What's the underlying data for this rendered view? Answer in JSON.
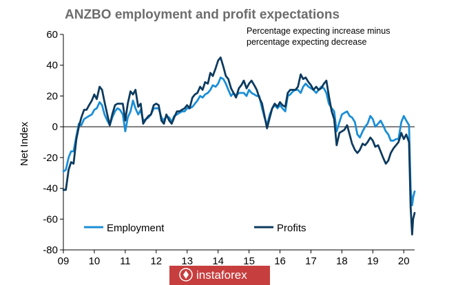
{
  "chart_data": {
    "type": "line",
    "title": "ANZBO employment and profit expectations",
    "subtitle_lines": [
      "Percentage expecting increase minus",
      "percentage expecting decrease"
    ],
    "ylabel": "Net Index",
    "ylim": [
      -80,
      60
    ],
    "yticks": [
      60,
      40,
      20,
      0,
      -20,
      -40,
      -60,
      -80
    ],
    "xlim": [
      2009,
      2020.35
    ],
    "xtick_labels": [
      "09",
      "10",
      "11",
      "12",
      "13",
      "14",
      "15",
      "16",
      "17",
      "18",
      "19",
      "20"
    ],
    "grid": false,
    "legend_position": "bottom-center",
    "zero_line": true,
    "series": [
      {
        "name": "Employment",
        "color": "#1b8ed6",
        "points": [
          [
            2009.0,
            -29
          ],
          [
            2009.08,
            -28
          ],
          [
            2009.17,
            -20
          ],
          [
            2009.25,
            -16
          ],
          [
            2009.33,
            -16
          ],
          [
            2009.42,
            -6
          ],
          [
            2009.5,
            2
          ],
          [
            2009.58,
            1
          ],
          [
            2009.67,
            5
          ],
          [
            2009.75,
            6
          ],
          [
            2009.83,
            7
          ],
          [
            2009.92,
            8
          ],
          [
            2010.0,
            11
          ],
          [
            2010.08,
            12
          ],
          [
            2010.17,
            16
          ],
          [
            2010.25,
            14
          ],
          [
            2010.33,
            8
          ],
          [
            2010.42,
            4
          ],
          [
            2010.5,
            1
          ],
          [
            2010.58,
            6
          ],
          [
            2010.67,
            10
          ],
          [
            2010.75,
            12
          ],
          [
            2010.83,
            11
          ],
          [
            2010.92,
            8
          ],
          [
            2011.0,
            -3
          ],
          [
            2011.08,
            6
          ],
          [
            2011.17,
            10
          ],
          [
            2011.25,
            17
          ],
          [
            2011.33,
            12
          ],
          [
            2011.42,
            8
          ],
          [
            2011.5,
            11
          ],
          [
            2011.58,
            4
          ],
          [
            2011.67,
            5
          ],
          [
            2011.75,
            6
          ],
          [
            2011.83,
            8
          ],
          [
            2011.92,
            12
          ],
          [
            2012.0,
            12
          ],
          [
            2012.08,
            12
          ],
          [
            2012.17,
            6
          ],
          [
            2012.25,
            4
          ],
          [
            2012.33,
            7
          ],
          [
            2012.42,
            6
          ],
          [
            2012.5,
            3
          ],
          [
            2012.58,
            7
          ],
          [
            2012.67,
            8
          ],
          [
            2012.75,
            9
          ],
          [
            2012.83,
            10
          ],
          [
            2012.92,
            10
          ],
          [
            2013.0,
            12
          ],
          [
            2013.08,
            12
          ],
          [
            2013.17,
            13
          ],
          [
            2013.25,
            15
          ],
          [
            2013.33,
            17
          ],
          [
            2013.42,
            20
          ],
          [
            2013.5,
            19
          ],
          [
            2013.58,
            21
          ],
          [
            2013.67,
            22
          ],
          [
            2013.75,
            24
          ],
          [
            2013.83,
            27
          ],
          [
            2013.92,
            26
          ],
          [
            2014.0,
            28
          ],
          [
            2014.08,
            32
          ],
          [
            2014.17,
            31
          ],
          [
            2014.25,
            28
          ],
          [
            2014.33,
            24
          ],
          [
            2014.42,
            20
          ],
          [
            2014.5,
            22
          ],
          [
            2014.58,
            20
          ],
          [
            2014.67,
            22
          ],
          [
            2014.75,
            22
          ],
          [
            2014.83,
            22
          ],
          [
            2014.92,
            20
          ],
          [
            2015.0,
            24
          ],
          [
            2015.08,
            22
          ],
          [
            2015.17,
            21
          ],
          [
            2015.25,
            20
          ],
          [
            2015.33,
            20
          ],
          [
            2015.42,
            12
          ],
          [
            2015.5,
            6
          ],
          [
            2015.58,
            1
          ],
          [
            2015.67,
            8
          ],
          [
            2015.75,
            12
          ],
          [
            2015.83,
            14
          ],
          [
            2015.92,
            12
          ],
          [
            2016.0,
            14
          ],
          [
            2016.08,
            12
          ],
          [
            2016.17,
            10
          ],
          [
            2016.25,
            20
          ],
          [
            2016.33,
            21
          ],
          [
            2016.42,
            23
          ],
          [
            2016.5,
            24
          ],
          [
            2016.58,
            24
          ],
          [
            2016.67,
            22
          ],
          [
            2016.75,
            26
          ],
          [
            2016.83,
            28
          ],
          [
            2016.92,
            26
          ],
          [
            2017.0,
            25
          ],
          [
            2017.08,
            24
          ],
          [
            2017.17,
            22
          ],
          [
            2017.25,
            24
          ],
          [
            2017.33,
            26
          ],
          [
            2017.42,
            25
          ],
          [
            2017.5,
            22
          ],
          [
            2017.58,
            15
          ],
          [
            2017.67,
            12
          ],
          [
            2017.75,
            10
          ],
          [
            2017.83,
            -3
          ],
          [
            2017.92,
            3
          ],
          [
            2018.0,
            8
          ],
          [
            2018.08,
            9
          ],
          [
            2018.17,
            10
          ],
          [
            2018.25,
            7
          ],
          [
            2018.33,
            6
          ],
          [
            2018.42,
            3
          ],
          [
            2018.5,
            -5
          ],
          [
            2018.58,
            -7
          ],
          [
            2018.67,
            -3
          ],
          [
            2018.75,
            0
          ],
          [
            2018.83,
            2
          ],
          [
            2018.92,
            7
          ],
          [
            2019.0,
            5
          ],
          [
            2019.08,
            0
          ],
          [
            2019.17,
            2
          ],
          [
            2019.25,
            4
          ],
          [
            2019.33,
            1
          ],
          [
            2019.42,
            -3
          ],
          [
            2019.5,
            -5
          ],
          [
            2019.58,
            -9
          ],
          [
            2019.67,
            -9
          ],
          [
            2019.75,
            -8
          ],
          [
            2019.83,
            -8
          ],
          [
            2019.92,
            3
          ],
          [
            2020.0,
            7
          ],
          [
            2020.08,
            4
          ],
          [
            2020.17,
            1
          ],
          [
            2020.22,
            -40
          ],
          [
            2020.27,
            -51
          ],
          [
            2020.3,
            -46
          ],
          [
            2020.35,
            -42
          ]
        ]
      },
      {
        "name": "Profits",
        "color": "#0d3a5e",
        "points": [
          [
            2009.0,
            -41
          ],
          [
            2009.08,
            -41
          ],
          [
            2009.17,
            -28
          ],
          [
            2009.25,
            -23
          ],
          [
            2009.33,
            -24
          ],
          [
            2009.42,
            -8
          ],
          [
            2009.5,
            0
          ],
          [
            2009.58,
            6
          ],
          [
            2009.67,
            11
          ],
          [
            2009.75,
            11
          ],
          [
            2009.83,
            14
          ],
          [
            2009.92,
            17
          ],
          [
            2010.0,
            21
          ],
          [
            2010.08,
            18
          ],
          [
            2010.17,
            26
          ],
          [
            2010.25,
            24
          ],
          [
            2010.33,
            16
          ],
          [
            2010.42,
            8
          ],
          [
            2010.5,
            1
          ],
          [
            2010.58,
            8
          ],
          [
            2010.67,
            14
          ],
          [
            2010.75,
            15
          ],
          [
            2010.83,
            15
          ],
          [
            2010.92,
            15
          ],
          [
            2011.0,
            4
          ],
          [
            2011.08,
            15
          ],
          [
            2011.17,
            23
          ],
          [
            2011.25,
            21
          ],
          [
            2011.33,
            24
          ],
          [
            2011.42,
            13
          ],
          [
            2011.5,
            15
          ],
          [
            2011.58,
            2
          ],
          [
            2011.67,
            5
          ],
          [
            2011.75,
            7
          ],
          [
            2011.83,
            8
          ],
          [
            2011.92,
            14
          ],
          [
            2012.0,
            15
          ],
          [
            2012.08,
            14
          ],
          [
            2012.17,
            4
          ],
          [
            2012.25,
            2
          ],
          [
            2012.33,
            8
          ],
          [
            2012.42,
            4
          ],
          [
            2012.5,
            2
          ],
          [
            2012.58,
            6
          ],
          [
            2012.67,
            10
          ],
          [
            2012.75,
            10
          ],
          [
            2012.83,
            11
          ],
          [
            2012.92,
            12
          ],
          [
            2013.0,
            14
          ],
          [
            2013.08,
            12
          ],
          [
            2013.17,
            19
          ],
          [
            2013.25,
            21
          ],
          [
            2013.33,
            22
          ],
          [
            2013.42,
            26
          ],
          [
            2013.5,
            24
          ],
          [
            2013.58,
            29
          ],
          [
            2013.67,
            28
          ],
          [
            2013.75,
            35
          ],
          [
            2013.83,
            33
          ],
          [
            2013.92,
            38
          ],
          [
            2014.0,
            43
          ],
          [
            2014.08,
            45
          ],
          [
            2014.17,
            39
          ],
          [
            2014.25,
            33
          ],
          [
            2014.33,
            31
          ],
          [
            2014.42,
            25
          ],
          [
            2014.5,
            22
          ],
          [
            2014.58,
            19
          ],
          [
            2014.67,
            25
          ],
          [
            2014.75,
            27
          ],
          [
            2014.83,
            30
          ],
          [
            2014.92,
            25
          ],
          [
            2015.0,
            28
          ],
          [
            2015.08,
            30
          ],
          [
            2015.17,
            27
          ],
          [
            2015.25,
            24
          ],
          [
            2015.33,
            19
          ],
          [
            2015.42,
            15
          ],
          [
            2015.5,
            7
          ],
          [
            2015.58,
            -1
          ],
          [
            2015.67,
            6
          ],
          [
            2015.75,
            12
          ],
          [
            2015.83,
            15
          ],
          [
            2015.92,
            13
          ],
          [
            2016.0,
            16
          ],
          [
            2016.08,
            14
          ],
          [
            2016.17,
            13
          ],
          [
            2016.25,
            22
          ],
          [
            2016.33,
            24
          ],
          [
            2016.42,
            24
          ],
          [
            2016.5,
            24
          ],
          [
            2016.58,
            26
          ],
          [
            2016.67,
            34
          ],
          [
            2016.75,
            31
          ],
          [
            2016.83,
            32
          ],
          [
            2016.92,
            29
          ],
          [
            2017.0,
            27
          ],
          [
            2017.08,
            24
          ],
          [
            2017.17,
            26
          ],
          [
            2017.25,
            24
          ],
          [
            2017.33,
            25
          ],
          [
            2017.42,
            28
          ],
          [
            2017.5,
            30
          ],
          [
            2017.58,
            20
          ],
          [
            2017.67,
            10
          ],
          [
            2017.75,
            5
          ],
          [
            2017.83,
            -12
          ],
          [
            2017.92,
            -4
          ],
          [
            2018.0,
            -3
          ],
          [
            2018.08,
            -2
          ],
          [
            2018.17,
            1
          ],
          [
            2018.25,
            -5
          ],
          [
            2018.33,
            -11
          ],
          [
            2018.42,
            -15
          ],
          [
            2018.5,
            -17
          ],
          [
            2018.58,
            -15
          ],
          [
            2018.67,
            -11
          ],
          [
            2018.75,
            -12
          ],
          [
            2018.83,
            -10
          ],
          [
            2018.92,
            -7
          ],
          [
            2019.0,
            -9
          ],
          [
            2019.08,
            -13
          ],
          [
            2019.17,
            -12
          ],
          [
            2019.25,
            -16
          ],
          [
            2019.33,
            -20
          ],
          [
            2019.42,
            -24
          ],
          [
            2019.5,
            -22
          ],
          [
            2019.58,
            -17
          ],
          [
            2019.67,
            -14
          ],
          [
            2019.75,
            -12
          ],
          [
            2019.83,
            -10
          ],
          [
            2019.92,
            -4
          ],
          [
            2020.0,
            -8
          ],
          [
            2020.08,
            -5
          ],
          [
            2020.17,
            -10
          ],
          [
            2020.22,
            -52
          ],
          [
            2020.27,
            -70
          ],
          [
            2020.3,
            -60
          ],
          [
            2020.35,
            -56
          ]
        ]
      }
    ]
  },
  "watermark": {
    "text": "instaforex",
    "background": "#c73e3e"
  }
}
